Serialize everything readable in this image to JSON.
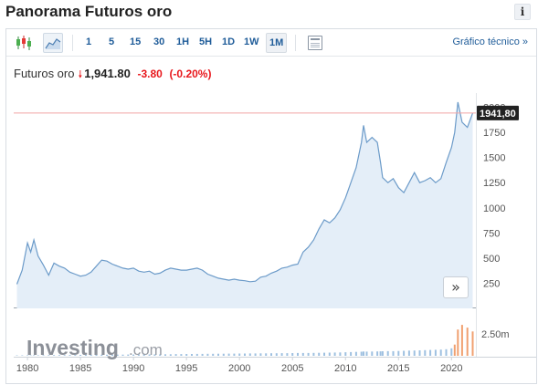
{
  "header": {
    "title": "Panorama Futuros oro",
    "info_label": "i"
  },
  "toolbar": {
    "periods": [
      "1",
      "5",
      "15",
      "30",
      "1H",
      "5H",
      "1D",
      "1W",
      "1M"
    ],
    "active_period": "1M",
    "tech_link": "Gráfico técnico »"
  },
  "quote": {
    "name": "Futuros oro",
    "arrow": "🠗",
    "price": "1,941.80",
    "change": "-3.80",
    "change_pct": "(-0.20%)"
  },
  "colors": {
    "line": "#6c9bc9",
    "area": "#e4eef8",
    "last_price_line": "#f0a5a5",
    "last_label_bg": "#222222",
    "negative": "#e8171c"
  },
  "logo": {
    "main": "Investing",
    "domain": ".com"
  },
  "scroll_button": "»",
  "chart_data": {
    "type": "area",
    "x_ticks": [
      "1980",
      "1985",
      "1990",
      "1995",
      "2000",
      "2005",
      "2010",
      "2015",
      "2020"
    ],
    "y_ticks": [
      "250",
      "500",
      "750",
      "1000",
      "1250",
      "1500",
      "1750",
      "2000"
    ],
    "ylim": [
      0,
      2050
    ],
    "last_value_label": "1941,80",
    "last_value": 1941.8,
    "volume_tick": "2.50m",
    "x": [
      1979.0,
      1979.5,
      1980.0,
      1980.3,
      1980.6,
      1981.0,
      1981.5,
      1982.0,
      1982.5,
      1983.0,
      1983.5,
      1984.0,
      1984.5,
      1985.0,
      1985.5,
      1986.0,
      1986.5,
      1987.0,
      1987.5,
      1988.0,
      1988.5,
      1989.0,
      1989.5,
      1990.0,
      1990.5,
      1991.0,
      1991.5,
      1992.0,
      1992.5,
      1993.0,
      1993.5,
      1994.0,
      1994.5,
      1995.0,
      1995.5,
      1996.0,
      1996.5,
      1997.0,
      1997.5,
      1998.0,
      1998.5,
      1999.0,
      1999.5,
      2000.0,
      2000.5,
      2001.0,
      2001.5,
      2002.0,
      2002.5,
      2003.0,
      2003.5,
      2004.0,
      2004.5,
      2005.0,
      2005.5,
      2006.0,
      2006.5,
      2007.0,
      2007.5,
      2008.0,
      2008.5,
      2009.0,
      2009.5,
      2010.0,
      2010.5,
      2011.0,
      2011.5,
      2011.7,
      2012.0,
      2012.5,
      2013.0,
      2013.3,
      2013.5,
      2014.0,
      2014.5,
      2015.0,
      2015.5,
      2016.0,
      2016.5,
      2017.0,
      2017.5,
      2018.0,
      2018.5,
      2019.0,
      2019.5,
      2020.0,
      2020.3,
      2020.6,
      2021.0,
      2021.5,
      2022.0
    ],
    "values": [
      240,
      380,
      650,
      560,
      680,
      520,
      430,
      330,
      450,
      420,
      400,
      360,
      340,
      320,
      330,
      360,
      420,
      480,
      470,
      440,
      420,
      400,
      390,
      400,
      370,
      360,
      370,
      340,
      350,
      380,
      400,
      390,
      380,
      380,
      390,
      400,
      380,
      340,
      320,
      300,
      290,
      280,
      290,
      280,
      275,
      265,
      270,
      310,
      320,
      350,
      370,
      400,
      410,
      430,
      440,
      560,
      610,
      680,
      790,
      880,
      850,
      900,
      980,
      1100,
      1250,
      1400,
      1650,
      1820,
      1650,
      1700,
      1650,
      1450,
      1300,
      1250,
      1290,
      1200,
      1150,
      1250,
      1350,
      1250,
      1270,
      1300,
      1250,
      1290,
      1450,
      1600,
      1750,
      2050,
      1850,
      1800,
      1941.8
    ],
    "volume_values": [
      0.05,
      0.05,
      0.06,
      0.05,
      0.06,
      0.06,
      0.07,
      0.07,
      0.08,
      0.08,
      0.08,
      0.09,
      0.09,
      0.1,
      0.1,
      0.1,
      0.11,
      0.12,
      0.12,
      0.12,
      0.13,
      0.13,
      0.14,
      0.14,
      0.14,
      0.15,
      0.15,
      0.16,
      0.16,
      0.17,
      0.17,
      0.18,
      0.18,
      0.19,
      0.19,
      0.2,
      0.2,
      0.21,
      0.21,
      0.22,
      0.22,
      0.23,
      0.23,
      0.24,
      0.24,
      0.25,
      0.25,
      0.26,
      0.26,
      0.27,
      0.27,
      0.28,
      0.28,
      0.29,
      0.3,
      0.3,
      0.3,
      0.31,
      0.32,
      0.33,
      0.34,
      0.35,
      0.36,
      0.38,
      0.4,
      0.42,
      0.44,
      0.46,
      0.45,
      0.46,
      0.47,
      0.48,
      0.49,
      0.5,
      0.5,
      0.52,
      0.53,
      0.55,
      0.56,
      0.58,
      0.6,
      0.62,
      0.64,
      0.66,
      0.7,
      0.8,
      1.2,
      2.8,
      3.3,
      3.0,
      2.6
    ]
  }
}
